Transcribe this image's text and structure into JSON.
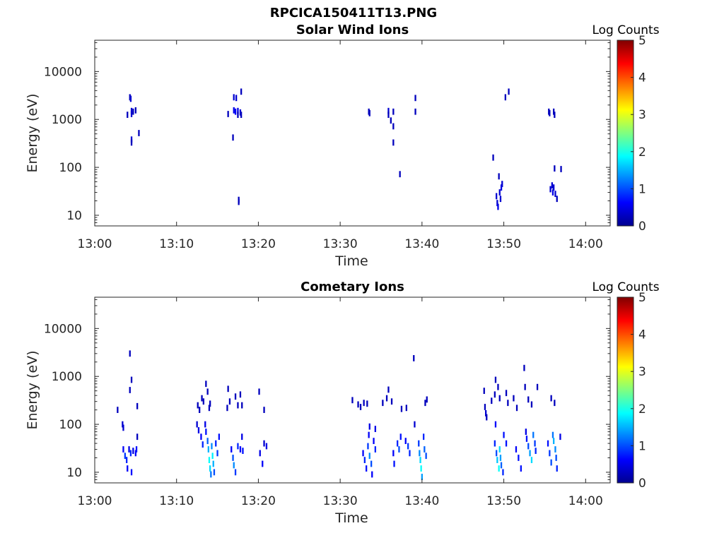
{
  "figure": {
    "title": "RPCICA150411T13.PNG",
    "background": "#ffffff"
  },
  "chart_data": [
    {
      "type": "heatmap",
      "title": "Solar Wind Ions",
      "xlabel": "Time",
      "ylabel": "Energy (eV)",
      "y_scale": "log",
      "x_ticks": [
        "13:00",
        "13:10",
        "13:20",
        "13:30",
        "13:40",
        "13:50",
        "14:00"
      ],
      "y_ticks": [
        "10",
        "100",
        "1000",
        "10000"
      ],
      "xlim_minutes_after_13:00": [
        0,
        63
      ],
      "ylim": [
        6,
        45000
      ],
      "colorbar": {
        "label": "Log Counts",
        "range": [
          0,
          5
        ],
        "ticks": [
          "0",
          "1",
          "2",
          "3",
          "4",
          "5"
        ],
        "colormap": "jet"
      },
      "cells": [
        [
          4.3,
          2900,
          0.3
        ],
        [
          4.4,
          2700,
          0.4
        ],
        [
          4.5,
          1500,
          0.4
        ],
        [
          4.0,
          1250,
          0.3
        ],
        [
          4.5,
          1300,
          0.4
        ],
        [
          4.7,
          1450,
          0.3
        ],
        [
          5.0,
          1550,
          0.3
        ],
        [
          4.5,
          380,
          0.4
        ],
        [
          4.5,
          330,
          0.3
        ],
        [
          5.4,
          520,
          0.3
        ],
        [
          17.0,
          2900,
          0.4
        ],
        [
          17.3,
          2800,
          0.4
        ],
        [
          17.0,
          1550,
          0.5
        ],
        [
          17.2,
          1450,
          0.6
        ],
        [
          17.5,
          1500,
          0.5
        ],
        [
          17.8,
          1400,
          0.4
        ],
        [
          16.3,
          1300,
          0.3
        ],
        [
          17.5,
          1250,
          0.3
        ],
        [
          17.9,
          3800,
          0.3
        ],
        [
          17.9,
          1250,
          0.3
        ],
        [
          16.9,
          420,
          0.3
        ],
        [
          17.6,
          21,
          0.3
        ],
        [
          17.6,
          19,
          0.3
        ],
        [
          33.5,
          1450,
          0.3
        ],
        [
          33.6,
          1350,
          0.3
        ],
        [
          35.9,
          1500,
          0.4
        ],
        [
          35.9,
          1250,
          0.3
        ],
        [
          36.5,
          1450,
          0.3
        ],
        [
          36.2,
          950,
          0.3
        ],
        [
          36.5,
          720,
          0.3
        ],
        [
          36.5,
          330,
          0.3
        ],
        [
          37.3,
          72,
          0.3
        ],
        [
          39.2,
          2800,
          0.3
        ],
        [
          39.2,
          1450,
          0.3
        ],
        [
          48.7,
          160,
          0.3
        ],
        [
          49.4,
          65,
          0.3
        ],
        [
          49.1,
          25,
          0.4
        ],
        [
          49.2,
          18,
          0.4
        ],
        [
          49.3,
          15,
          0.5
        ],
        [
          49.5,
          30,
          0.4
        ],
        [
          49.6,
          22,
          0.4
        ],
        [
          49.7,
          38,
          0.5
        ],
        [
          49.8,
          45,
          0.4
        ],
        [
          50.2,
          2900,
          0.3
        ],
        [
          50.6,
          3800,
          0.3
        ],
        [
          55.5,
          1450,
          0.3
        ],
        [
          55.6,
          1350,
          0.3
        ],
        [
          56.1,
          1450,
          0.3
        ],
        [
          56.2,
          1250,
          0.3
        ],
        [
          55.7,
          35,
          0.4
        ],
        [
          55.9,
          42,
          0.4
        ],
        [
          56.0,
          30,
          0.5
        ],
        [
          56.1,
          38,
          0.4
        ],
        [
          56.3,
          28,
          0.4
        ],
        [
          56.5,
          22,
          0.3
        ],
        [
          56.2,
          95,
          0.3
        ],
        [
          57.0,
          92,
          0.3
        ]
      ]
    },
    {
      "type": "heatmap",
      "title": "Cometary Ions",
      "xlabel": "Time",
      "ylabel": "Energy (eV)",
      "y_scale": "log",
      "x_ticks": [
        "13:00",
        "13:10",
        "13:20",
        "13:30",
        "13:40",
        "13:50",
        "14:00"
      ],
      "y_ticks": [
        "10",
        "100",
        "1000",
        "10000"
      ],
      "xlim_minutes_after_13:00": [
        0,
        63
      ],
      "ylim": [
        6,
        45000
      ],
      "colorbar": {
        "label": "Log Counts",
        "range": [
          0,
          5
        ],
        "ticks": [
          "0",
          "1",
          "2",
          "3",
          "4",
          "5"
        ],
        "colormap": "jet"
      },
      "cells": [
        [
          4.3,
          3000,
          0.3
        ],
        [
          4.5,
          850,
          0.3
        ],
        [
          4.3,
          520,
          0.3
        ],
        [
          2.8,
          200,
          0.3
        ],
        [
          5.2,
          240,
          0.3
        ],
        [
          3.4,
          100,
          0.4
        ],
        [
          3.5,
          85,
          0.4
        ],
        [
          5.2,
          55,
          0.3
        ],
        [
          3.5,
          30,
          0.6
        ],
        [
          3.7,
          22,
          0.9
        ],
        [
          3.9,
          18,
          0.8
        ],
        [
          4.0,
          12,
          0.6
        ],
        [
          4.2,
          30,
          0.5
        ],
        [
          4.4,
          25,
          0.8
        ],
        [
          4.5,
          10,
          0.7
        ],
        [
          4.7,
          28,
          0.5
        ],
        [
          5.0,
          25,
          0.6
        ],
        [
          5.1,
          30,
          0.7
        ],
        [
          12.6,
          250,
          0.3
        ],
        [
          12.8,
          200,
          0.3
        ],
        [
          13.1,
          350,
          0.3
        ],
        [
          13.3,
          300,
          0.3
        ],
        [
          13.6,
          700,
          0.3
        ],
        [
          13.8,
          480,
          0.3
        ],
        [
          14.0,
          220,
          0.3
        ],
        [
          14.1,
          270,
          0.3
        ],
        [
          12.5,
          100,
          0.4
        ],
        [
          12.7,
          75,
          0.5
        ],
        [
          13.0,
          55,
          0.6
        ],
        [
          13.2,
          38,
          0.8
        ],
        [
          13.5,
          100,
          0.5
        ],
        [
          13.6,
          70,
          0.7
        ],
        [
          13.8,
          45,
          1.1
        ],
        [
          13.9,
          30,
          1.5
        ],
        [
          14.0,
          18,
          1.9
        ],
        [
          14.1,
          12,
          1.7
        ],
        [
          14.2,
          9,
          1.2
        ],
        [
          14.3,
          35,
          1.3
        ],
        [
          14.4,
          22,
          1.8
        ],
        [
          14.5,
          15,
          1.5
        ],
        [
          14.6,
          10,
          1.0
        ],
        [
          14.8,
          40,
          0.8
        ],
        [
          15.0,
          25,
          0.9
        ],
        [
          15.2,
          55,
          0.7
        ],
        [
          16.3,
          550,
          0.3
        ],
        [
          16.5,
          300,
          0.3
        ],
        [
          16.2,
          220,
          0.3
        ],
        [
          17.2,
          380,
          0.3
        ],
        [
          17.5,
          250,
          0.3
        ],
        [
          17.8,
          420,
          0.3
        ],
        [
          18.0,
          250,
          0.3
        ],
        [
          16.7,
          30,
          0.6
        ],
        [
          16.9,
          20,
          1.0
        ],
        [
          17.0,
          14,
          1.3
        ],
        [
          17.2,
          10,
          0.9
        ],
        [
          17.5,
          35,
          0.8
        ],
        [
          17.8,
          30,
          0.6
        ],
        [
          18.0,
          55,
          0.5
        ],
        [
          18.1,
          28,
          0.7
        ],
        [
          20.1,
          480,
          0.3
        ],
        [
          20.7,
          200,
          0.3
        ],
        [
          20.2,
          25,
          0.5
        ],
        [
          20.5,
          15,
          0.6
        ],
        [
          20.7,
          40,
          0.4
        ],
        [
          21.0,
          35,
          0.5
        ],
        [
          31.5,
          320,
          0.3
        ],
        [
          32.2,
          260,
          0.3
        ],
        [
          32.5,
          230,
          0.3
        ],
        [
          32.9,
          280,
          0.3
        ],
        [
          33.3,
          270,
          0.3
        ],
        [
          33.6,
          90,
          0.5
        ],
        [
          33.5,
          60,
          0.6
        ],
        [
          32.8,
          25,
          0.6
        ],
        [
          33.0,
          18,
          0.8
        ],
        [
          33.2,
          12,
          0.7
        ],
        [
          33.4,
          35,
          0.9
        ],
        [
          33.6,
          22,
          1.3
        ],
        [
          33.8,
          15,
          1.0
        ],
        [
          33.9,
          9,
          0.6
        ],
        [
          34.3,
          80,
          0.5
        ],
        [
          34.1,
          45,
          0.6
        ],
        [
          34.3,
          30,
          0.8
        ],
        [
          35.2,
          280,
          0.3
        ],
        [
          35.7,
          350,
          0.3
        ],
        [
          35.9,
          530,
          0.3
        ],
        [
          36.3,
          300,
          0.3
        ],
        [
          37.5,
          210,
          0.3
        ],
        [
          38.1,
          220,
          0.3
        ],
        [
          36.5,
          25,
          0.6
        ],
        [
          36.6,
          15,
          0.7
        ],
        [
          37.0,
          40,
          0.8
        ],
        [
          37.2,
          30,
          1.0
        ],
        [
          37.4,
          55,
          0.7
        ],
        [
          38.0,
          45,
          0.6
        ],
        [
          38.3,
          35,
          0.9
        ],
        [
          38.5,
          25,
          0.8
        ],
        [
          39.0,
          2400,
          0.3
        ],
        [
          39.1,
          100,
          0.4
        ],
        [
          39.6,
          40,
          0.9
        ],
        [
          39.7,
          25,
          1.3
        ],
        [
          39.8,
          18,
          1.7
        ],
        [
          39.9,
          12,
          1.9
        ],
        [
          40.0,
          8,
          1.4
        ],
        [
          40.2,
          55,
          0.8
        ],
        [
          40.3,
          30,
          1.1
        ],
        [
          40.5,
          22,
          1.0
        ],
        [
          40.4,
          280,
          0.3
        ],
        [
          40.6,
          330,
          0.3
        ],
        [
          47.6,
          500,
          0.3
        ],
        [
          47.7,
          230,
          0.3
        ],
        [
          47.8,
          170,
          0.4
        ],
        [
          47.9,
          140,
          0.3
        ],
        [
          48.5,
          310,
          0.3
        ],
        [
          48.9,
          420,
          0.3
        ],
        [
          49.0,
          850,
          0.3
        ],
        [
          49.3,
          600,
          0.3
        ],
        [
          49.5,
          350,
          0.3
        ],
        [
          50.3,
          450,
          0.3
        ],
        [
          50.5,
          280,
          0.3
        ],
        [
          49.0,
          100,
          0.6
        ],
        [
          48.9,
          40,
          0.8
        ],
        [
          49.1,
          25,
          1.0
        ],
        [
          49.2,
          18,
          1.6
        ],
        [
          49.4,
          12,
          1.9
        ],
        [
          49.5,
          30,
          1.7
        ],
        [
          49.6,
          20,
          1.4
        ],
        [
          49.7,
          14,
          1.1
        ],
        [
          49.9,
          10,
          0.8
        ],
        [
          50.0,
          60,
          0.7
        ],
        [
          50.3,
          40,
          0.7
        ],
        [
          51.2,
          350,
          0.3
        ],
        [
          51.6,
          220,
          0.3
        ],
        [
          52.5,
          1500,
          0.3
        ],
        [
          52.6,
          600,
          0.3
        ],
        [
          53.0,
          330,
          0.3
        ],
        [
          53.4,
          260,
          0.3
        ],
        [
          54.1,
          600,
          0.3
        ],
        [
          51.5,
          30,
          0.6
        ],
        [
          51.8,
          20,
          0.7
        ],
        [
          52.1,
          12,
          0.7
        ],
        [
          52.7,
          70,
          0.5
        ],
        [
          52.8,
          50,
          0.7
        ],
        [
          53.0,
          35,
          1.0
        ],
        [
          53.2,
          25,
          1.4
        ],
        [
          53.4,
          18,
          1.7
        ],
        [
          53.6,
          60,
          1.2
        ],
        [
          53.8,
          40,
          0.9
        ],
        [
          53.9,
          28,
          0.8
        ],
        [
          55.4,
          40,
          0.7
        ],
        [
          55.6,
          25,
          0.9
        ],
        [
          55.8,
          16,
          1.0
        ],
        [
          56.0,
          60,
          1.2
        ],
        [
          56.1,
          45,
          1.5
        ],
        [
          56.3,
          30,
          1.3
        ],
        [
          56.4,
          20,
          1.0
        ],
        [
          56.5,
          12,
          0.8
        ],
        [
          56.9,
          55,
          0.5
        ],
        [
          55.8,
          350,
          0.3
        ],
        [
          56.2,
          280,
          0.3
        ]
      ]
    }
  ]
}
